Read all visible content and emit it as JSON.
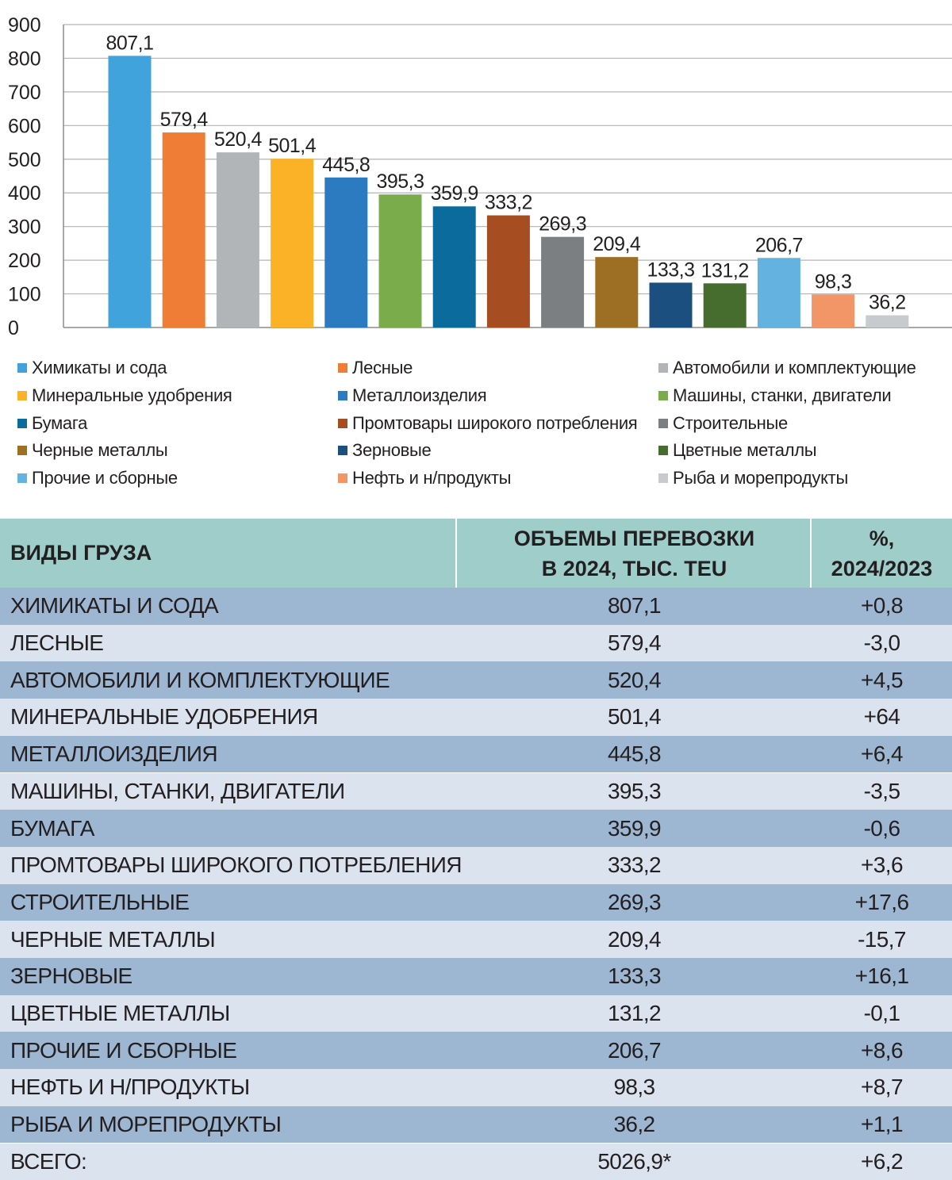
{
  "chart_data": {
    "type": "bar",
    "categories": [
      "Химикаты и сода",
      "Лесные",
      "Автомобили и комплектующие",
      "Минеральные удобрения",
      "Металлоизделия",
      "Машины, станки, двигатели",
      "Бумага",
      "Промтовары широкого потребления",
      "Строительные",
      "Черные металлы",
      "Зерновые",
      "Цветные металлы",
      "Прочие и сборные",
      "Нефть и н/продукты",
      "Рыба и морепродукты"
    ],
    "values": [
      807.1,
      579.4,
      520.4,
      501.4,
      445.8,
      395.3,
      359.9,
      333.2,
      269.3,
      209.4,
      133.3,
      131.2,
      206.7,
      98.3,
      36.2
    ],
    "value_labels": [
      "807,1",
      "579,4",
      "520,4",
      "501,4",
      "445,8",
      "395,3",
      "359,9",
      "333,2",
      "269,3",
      "209,4",
      "133,3",
      "131,2",
      "206,7",
      "98,3",
      "36,2"
    ],
    "colors": [
      "#41a3dc",
      "#ef7d35",
      "#b1b5b8",
      "#fbb227",
      "#2c7bc1",
      "#7aac4c",
      "#0b6b9c",
      "#a74d22",
      "#7b7f82",
      "#9c6f25",
      "#1a4f80",
      "#466d2e",
      "#63b2e0",
      "#f29668",
      "#c8cbcd"
    ],
    "yticks": [
      "0",
      "100",
      "200",
      "300",
      "400",
      "500",
      "600",
      "700",
      "800",
      "900"
    ],
    "ylim": [
      0,
      900
    ],
    "grid": true,
    "legend": "bottom, 3 columns"
  },
  "table": {
    "header": {
      "col1": "ВИДЫ ГРУЗА",
      "col2_line1": "ОБЪЕМЫ ПЕРЕВОЗКИ",
      "col2_line2": "В 2024, ТЫС. TEU",
      "col3_line1": "%,",
      "col3_line2": "2024/2023"
    },
    "rows": [
      {
        "name": "ХИМИКАТЫ И СОДА",
        "volume": "807,1",
        "change": "+0,8"
      },
      {
        "name": "ЛЕСНЫЕ",
        "volume": "579,4",
        "change": "-3,0"
      },
      {
        "name": "АВТОМОБИЛИ И КОМПЛЕКТУЮЩИЕ",
        "volume": "520,4",
        "change": "+4,5"
      },
      {
        "name": "МИНЕРАЛЬНЫЕ УДОБРЕНИЯ",
        "volume": "501,4",
        "change": "+64"
      },
      {
        "name": "МЕТАЛЛОИЗДЕЛИЯ",
        "volume": "445,8",
        "change": "+6,4"
      },
      {
        "name": "МАШИНЫ, СТАНКИ, ДВИГАТЕЛИ",
        "volume": "395,3",
        "change": "-3,5"
      },
      {
        "name": "БУМАГА",
        "volume": "359,9",
        "change": "-0,6"
      },
      {
        "name": "ПРОМТОВАРЫ ШИРОКОГО ПОТРЕБЛЕНИЯ",
        "volume": "333,2",
        "change": "+3,6"
      },
      {
        "name": "СТРОИТЕЛЬНЫЕ",
        "volume": "269,3",
        "change": "+17,6"
      },
      {
        "name": "ЧЕРНЫЕ МЕТАЛЛЫ",
        "volume": "209,4",
        "change": "-15,7"
      },
      {
        "name": "ЗЕРНОВЫЕ",
        "volume": "133,3",
        "change": "+16,1"
      },
      {
        "name": "ЦВЕТНЫЕ МЕТАЛЛЫ",
        "volume": "131,2",
        "change": "-0,1"
      },
      {
        "name": "ПРОЧИЕ И СБОРНЫЕ",
        "volume": "206,7",
        "change": "+8,6"
      },
      {
        "name": "НЕФТЬ И Н/ПРОДУКТЫ",
        "volume": "98,3",
        "change": "+8,7"
      },
      {
        "name": "РЫБА И МОРЕПРОДУКТЫ",
        "volume": "36,2",
        "change": "+1,1"
      },
      {
        "name": "ВСЕГО:",
        "volume": "5026,9*",
        "change": "+6,2"
      }
    ]
  }
}
